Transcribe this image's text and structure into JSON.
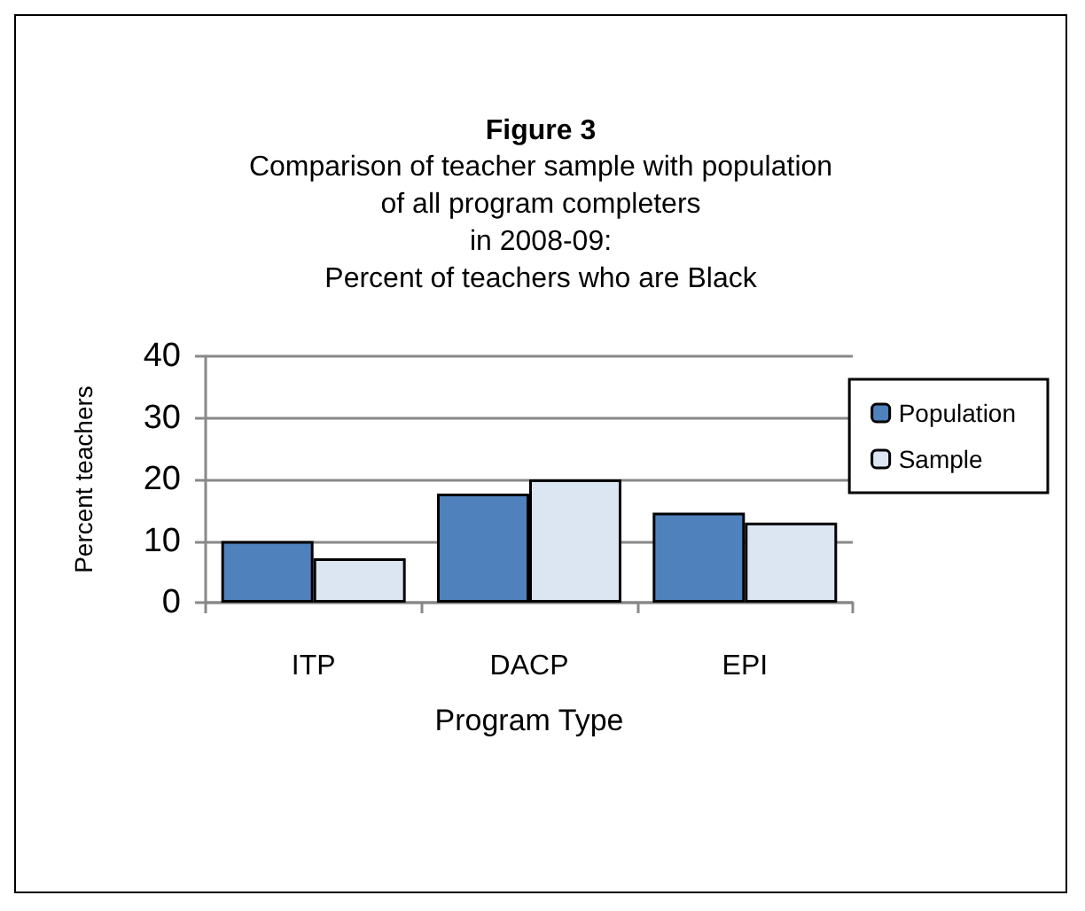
{
  "chart_data": {
    "type": "bar",
    "title": "Figure 3",
    "subtitle": "Comparison of teacher sample with population\nof all program completers\nin 2008-09:\nPercent of teachers who are Black",
    "xlabel": "Program Type",
    "ylabel": "Percent teachers",
    "categories": [
      "ITP",
      "DACP",
      "EPI"
    ],
    "series": [
      {
        "name": "Population",
        "color": "#4f81bd",
        "values": [
          10,
          17.7,
          14.6
        ]
      },
      {
        "name": "Sample",
        "color": "#dce6f2",
        "values": [
          7.2,
          20,
          13.0
        ]
      }
    ],
    "ylim": [
      0,
      40
    ],
    "yticks": [
      0,
      10,
      20,
      30,
      40
    ],
    "grid": "y",
    "legend": "top right"
  }
}
